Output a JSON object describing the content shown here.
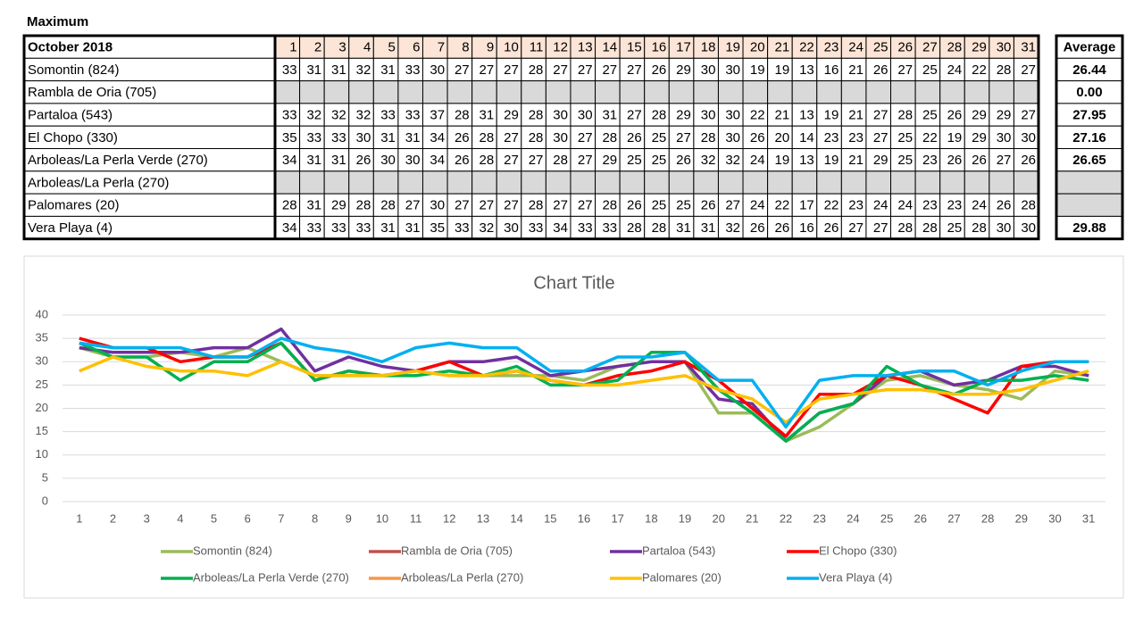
{
  "title": "Maximum",
  "table": {
    "header_label": "October  2018",
    "average_label": "Average",
    "averages": [
      "26.44",
      "0.00",
      "27.95",
      "27.16",
      "26.65",
      null,
      null,
      "29.88"
    ]
  },
  "chart_data": {
    "type": "line",
    "title": "Chart Title",
    "categories": [
      1,
      2,
      3,
      4,
      5,
      6,
      7,
      8,
      9,
      10,
      11,
      12,
      13,
      14,
      15,
      16,
      17,
      18,
      19,
      20,
      21,
      22,
      23,
      24,
      25,
      26,
      27,
      28,
      29,
      30,
      31
    ],
    "ylim": [
      0,
      40
    ],
    "yticks": [
      0,
      5,
      10,
      15,
      20,
      25,
      30,
      35,
      40
    ],
    "grid": true,
    "legend": "bottom",
    "series": [
      {
        "name": "Somontin (824)",
        "color": "#9bbb59",
        "values": [
          33,
          31,
          31,
          32,
          31,
          33,
          30,
          27,
          27,
          27,
          28,
          27,
          27,
          27,
          27,
          26,
          29,
          30,
          30,
          19,
          19,
          13,
          16,
          21,
          26,
          27,
          25,
          24,
          22,
          28,
          27
        ]
      },
      {
        "name": "Rambla de Oria (705)",
        "color": "#c0504d",
        "values": [
          null,
          null,
          null,
          null,
          null,
          null,
          null,
          null,
          null,
          null,
          null,
          null,
          null,
          null,
          null,
          null,
          null,
          null,
          null,
          null,
          null,
          null,
          null,
          null,
          null,
          null,
          null,
          null,
          null,
          null,
          null
        ]
      },
      {
        "name": "Partaloa (543)",
        "color": "#7030a0",
        "values": [
          33,
          32,
          32,
          32,
          33,
          33,
          37,
          28,
          31,
          29,
          28,
          30,
          30,
          31,
          27,
          28,
          29,
          30,
          30,
          22,
          21,
          13,
          19,
          21,
          27,
          28,
          25,
          26,
          29,
          29,
          27
        ]
      },
      {
        "name": "El Chopo (330)",
        "color": "#ff0000",
        "values": [
          35,
          33,
          33,
          30,
          31,
          31,
          34,
          26,
          28,
          27,
          28,
          30,
          27,
          28,
          26,
          25,
          27,
          28,
          30,
          26,
          20,
          14,
          23,
          23,
          27,
          25,
          22,
          19,
          29,
          30,
          30
        ]
      },
      {
        "name": "Arboleas/La Perla Verde (270)",
        "color": "#00b050",
        "values": [
          34,
          31,
          31,
          26,
          30,
          30,
          34,
          26,
          28,
          27,
          27,
          28,
          27,
          29,
          25,
          25,
          26,
          32,
          32,
          24,
          19,
          13,
          19,
          21,
          29,
          25,
          23,
          26,
          26,
          27,
          26
        ]
      },
      {
        "name": "Arboleas/La Perla (270)",
        "color": "#f79646",
        "values": [
          null,
          null,
          null,
          null,
          null,
          null,
          null,
          null,
          null,
          null,
          null,
          null,
          null,
          null,
          null,
          null,
          null,
          null,
          null,
          null,
          null,
          null,
          null,
          null,
          null,
          null,
          null,
          null,
          null,
          null,
          null
        ]
      },
      {
        "name": "Palomares (20)",
        "color": "#ffc000",
        "values": [
          28,
          31,
          29,
          28,
          28,
          27,
          30,
          27,
          27,
          27,
          28,
          27,
          27,
          28,
          26,
          25,
          25,
          26,
          27,
          24,
          22,
          17,
          22,
          23,
          24,
          24,
          23,
          23,
          24,
          26,
          28
        ]
      },
      {
        "name": "Vera Playa (4)",
        "color": "#00b0f0",
        "values": [
          34,
          33,
          33,
          33,
          31,
          31,
          35,
          33,
          32,
          30,
          33,
          34,
          33,
          33,
          28,
          28,
          31,
          31,
          32,
          26,
          26,
          16,
          26,
          27,
          27,
          28,
          28,
          25,
          28,
          30,
          30
        ]
      }
    ]
  }
}
